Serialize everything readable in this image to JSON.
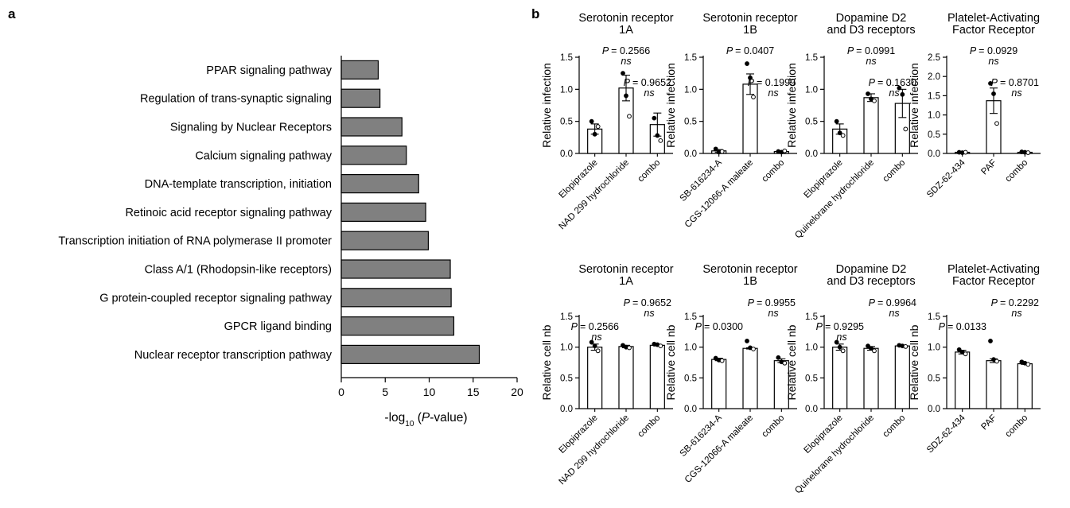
{
  "panel_labels": {
    "a": "a",
    "b": "b"
  },
  "colors": {
    "bar_fill": "#808080",
    "stroke": "#000000",
    "background": "#ffffff"
  },
  "chart_data": [
    {
      "type": "bar",
      "orientation": "horizontal",
      "panel": "a",
      "categories": [
        "PPAR signaling pathway",
        "Regulation of trans-synaptic signaling",
        "Signaling by Nuclear Receptors",
        "Calcium signaling pathway",
        "DNA-template transcription, initiation",
        "Retinoic acid receptor signaling pathway",
        "Transcription initiation of RNA polymerase II promoter",
        "Class A/1 (Rhodopsin-like receptors)",
        "G protein-coupled receptor signaling pathway",
        "GPCR ligand binding",
        "Nuclear receptor transcription pathway"
      ],
      "values": [
        4.2,
        4.4,
        6.9,
        7.4,
        8.8,
        9.6,
        9.9,
        12.4,
        12.5,
        12.8,
        15.7
      ],
      "xlabel_prefix": "-log",
      "xlabel_sub": "10",
      "xlabel_open": " (",
      "xlabel_italic": "P",
      "xlabel_suffix": "-value)",
      "xlim": [
        0,
        20
      ],
      "xticks": [
        0,
        5,
        10,
        15,
        20
      ],
      "grid": false
    },
    {
      "type": "bar",
      "panel": "b",
      "row": "infection",
      "title_line1": "Serotonin receptor",
      "title_line2": "1A",
      "ylabel": "Relative infection",
      "ylim": [
        0,
        1.5
      ],
      "yticks": [
        0.0,
        0.5,
        1.0,
        1.5
      ],
      "categories": [
        "Elopiprazole",
        "NAD 299 hydrochloride",
        "combo"
      ],
      "values": [
        0.38,
        1.02,
        0.45
      ],
      "errors": [
        0.08,
        0.2,
        0.18
      ],
      "points": [
        [
          0.5,
          0.3,
          0.42
        ],
        [
          1.25,
          0.9,
          0.58
        ],
        [
          0.55,
          0.28,
          0.2
        ]
      ],
      "annotations": [
        {
          "p": "= 0.2566",
          "ns": "ns",
          "at": 1
        },
        {
          "p": "= 0.9652",
          "ns": "ns",
          "at": 2
        }
      ]
    },
    {
      "type": "bar",
      "panel": "b",
      "row": "infection",
      "title_line1": "Serotonin receptor",
      "title_line2": "1B",
      "ylabel": "Relative infection",
      "ylim": [
        0,
        1.5
      ],
      "yticks": [
        0.0,
        0.5,
        1.0,
        1.5
      ],
      "categories": [
        "SB-616234-A",
        "CGS-12066-A maleate",
        "combo"
      ],
      "values": [
        0.04,
        1.08,
        0.03
      ],
      "errors": [
        0.02,
        0.16,
        0.01
      ],
      "points": [
        [
          0.07,
          0.02,
          0.03
        ],
        [
          1.4,
          1.18,
          0.88
        ],
        [
          0.03,
          0.02,
          0.04
        ]
      ],
      "annotations": [
        {
          "p": "= 0.0407",
          "ns": "",
          "at": 1
        },
        {
          "p": "= 0.1999",
          "ns": "ns",
          "at": 2
        }
      ]
    },
    {
      "type": "bar",
      "panel": "b",
      "row": "infection",
      "title_line1": "Dopamine D2",
      "title_line2": "and D3 receptors",
      "ylabel": "Relative infection",
      "ylim": [
        0,
        1.5
      ],
      "yticks": [
        0.0,
        0.5,
        1.0,
        1.5
      ],
      "categories": [
        "Elopiprazole",
        "Quinelorane hydrochloride",
        "combo"
      ],
      "values": [
        0.38,
        0.87,
        0.78
      ],
      "errors": [
        0.08,
        0.06,
        0.22
      ],
      "points": [
        [
          0.5,
          0.32,
          0.28
        ],
        [
          0.93,
          0.85,
          0.82
        ],
        [
          1.02,
          0.92,
          0.38
        ]
      ],
      "annotations": [
        {
          "p": "= 0.0991",
          "ns": "ns",
          "at": 1
        },
        {
          "p": "= 0.1630",
          "ns": "ns",
          "at": 2
        }
      ]
    },
    {
      "type": "bar",
      "panel": "b",
      "row": "infection",
      "title_line1": "Platelet-Activating",
      "title_line2": "Factor Receptor",
      "ylabel": "Relative infection",
      "ylim": [
        0,
        2.5
      ],
      "yticks": [
        0.0,
        0.5,
        1.0,
        1.5,
        2.0,
        2.5
      ],
      "categories": [
        "SDZ-62-434",
        "PAF",
        "combo"
      ],
      "values": [
        0.03,
        1.37,
        0.03
      ],
      "errors": [
        0.01,
        0.33,
        0.01
      ],
      "points": [
        [
          0.03,
          0.02,
          0.03
        ],
        [
          1.82,
          1.55,
          0.78
        ],
        [
          0.04,
          0.03,
          0.02
        ]
      ],
      "annotations": [
        {
          "p": "= 0.0929",
          "ns": "ns",
          "at": 1
        },
        {
          "p": "= 0.8701",
          "ns": "ns",
          "at": 2
        }
      ]
    },
    {
      "type": "bar",
      "panel": "b",
      "row": "cells",
      "title_line1": "Serotonin receptor",
      "title_line2": "1A",
      "ylabel": "Relative cell nb",
      "ylim": [
        0,
        1.5
      ],
      "yticks": [
        0.0,
        0.5,
        1.0,
        1.5
      ],
      "categories": [
        "Elopiprazole",
        "NAD 299 hydrochloride",
        "combo"
      ],
      "values": [
        1.0,
        1.01,
        1.03
      ],
      "errors": [
        0.05,
        0.02,
        0.01
      ],
      "points": [
        [
          1.08,
          1.02,
          0.94
        ],
        [
          1.03,
          1.0,
          0.99
        ],
        [
          1.05,
          1.04,
          1.02
        ]
      ],
      "annotations": [
        {
          "p": "= 0.2566",
          "ns": "ns",
          "at": 1
        },
        {
          "p": "= 0.9652",
          "ns": "ns",
          "at": 2
        }
      ]
    },
    {
      "type": "bar",
      "panel": "b",
      "row": "cells",
      "title_line1": "Serotonin receptor",
      "title_line2": "1B",
      "ylabel": "Relative cell nb",
      "ylim": [
        0,
        1.5
      ],
      "yticks": [
        0.0,
        0.5,
        1.0,
        1.5
      ],
      "categories": [
        "SB-616234-A",
        "CGS-12066-A maleate",
        "combo"
      ],
      "values": [
        0.8,
        0.98,
        0.78
      ],
      "errors": [
        0.02,
        0.01,
        0.03
      ],
      "points": [
        [
          0.82,
          0.79,
          0.78
        ],
        [
          1.1,
          0.99,
          0.97
        ],
        [
          0.83,
          0.76,
          0.74
        ]
      ],
      "annotations": [
        {
          "p": "= 0.0300",
          "ns": "",
          "at": 1
        },
        {
          "p": "= 0.9955",
          "ns": "ns",
          "at": 2
        }
      ]
    },
    {
      "type": "bar",
      "panel": "b",
      "row": "cells",
      "title_line1": "Dopamine D2",
      "title_line2": "and D3 receptors",
      "ylabel": "Relative cell nb",
      "ylim": [
        0,
        1.5
      ],
      "yticks": [
        0.0,
        0.5,
        1.0,
        1.5
      ],
      "categories": [
        "Elopiprazole",
        "Quinelorane hydrochloride",
        "combo"
      ],
      "values": [
        1.0,
        0.98,
        1.02
      ],
      "errors": [
        0.05,
        0.03,
        0.01
      ],
      "points": [
        [
          1.08,
          1.0,
          0.94
        ],
        [
          1.02,
          0.98,
          0.94
        ],
        [
          1.03,
          1.02,
          1.01
        ]
      ],
      "annotations": [
        {
          "p": "= 0.9295",
          "ns": "ns",
          "at": 1
        },
        {
          "p": "= 0.9964",
          "ns": "ns",
          "at": 2
        }
      ]
    },
    {
      "type": "bar",
      "panel": "b",
      "row": "cells",
      "title_line1": "Platelet-Activating",
      "title_line2": "Factor Receptor",
      "ylabel": "Relative cell nb",
      "ylim": [
        0,
        1.5
      ],
      "yticks": [
        0.0,
        0.5,
        1.0,
        1.5
      ],
      "categories": [
        "SDZ-62-434",
        "PAF",
        "combo"
      ],
      "values": [
        0.92,
        0.78,
        0.73
      ],
      "errors": [
        0.03,
        0.03,
        0.01
      ],
      "points": [
        [
          0.96,
          0.92,
          0.89
        ],
        [
          1.1,
          0.8,
          0.77
        ],
        [
          0.76,
          0.74,
          0.72
        ]
      ],
      "annotations": [
        {
          "p": "= 0.0133",
          "ns": "",
          "at": 1
        },
        {
          "p": "= 0.2292",
          "ns": "ns",
          "at": 2
        }
      ]
    }
  ]
}
